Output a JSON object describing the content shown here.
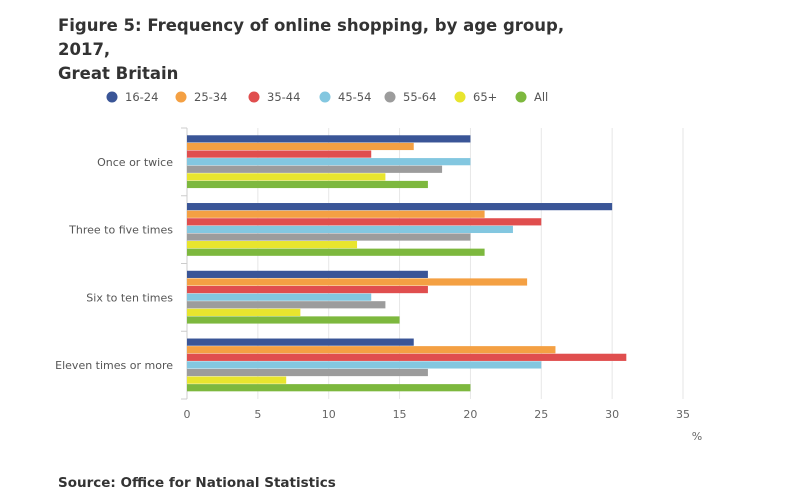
{
  "title_line1": "Figure 5: Frequency of online shopping, by age group, 2017,",
  "title_line2": "Great Britain",
  "source": "Source: Office for National Statistics",
  "chart_data": {
    "type": "bar",
    "orientation": "horizontal",
    "categories": [
      "Once or twice",
      "Three to five times",
      "Six to ten times",
      "Eleven times or more"
    ],
    "series": [
      {
        "name": "16-24",
        "color": "#3a5597",
        "values": [
          20,
          30,
          17,
          16
        ]
      },
      {
        "name": "25-34",
        "color": "#f4a043",
        "values": [
          16,
          21,
          24,
          26
        ]
      },
      {
        "name": "35-44",
        "color": "#e04e4e",
        "values": [
          13,
          25,
          17,
          31
        ]
      },
      {
        "name": "45-54",
        "color": "#83c7e0",
        "values": [
          20,
          23,
          13,
          25
        ]
      },
      {
        "name": "55-64",
        "color": "#9c9c9c",
        "values": [
          18,
          20,
          14,
          17
        ]
      },
      {
        "name": "65+",
        "color": "#e8e52e",
        "values": [
          14,
          12,
          8,
          7
        ]
      },
      {
        "name": "All",
        "color": "#7db83e",
        "values": [
          17,
          21,
          15,
          20
        ]
      }
    ],
    "xlabel": "%",
    "xlim": [
      0,
      35
    ],
    "xticks": [
      "0",
      "5",
      "10",
      "15",
      "20",
      "25",
      "30",
      "35"
    ],
    "grid": true,
    "legend": "top"
  }
}
